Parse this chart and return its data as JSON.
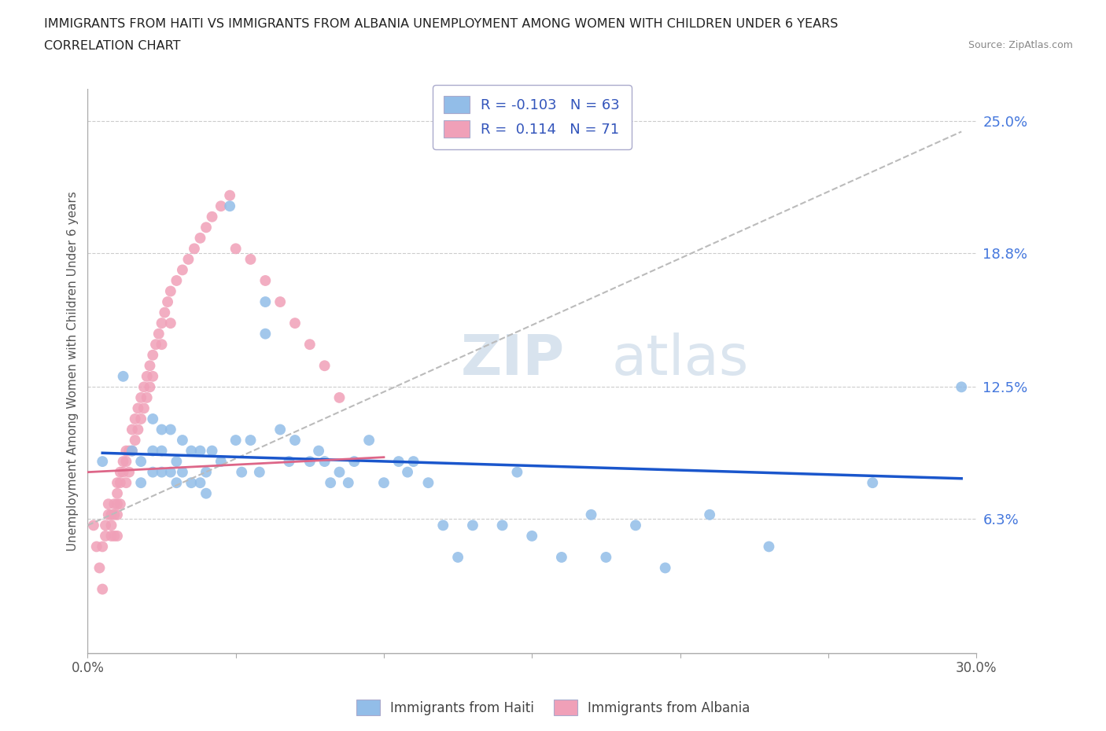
{
  "title_line1": "IMMIGRANTS FROM HAITI VS IMMIGRANTS FROM ALBANIA UNEMPLOYMENT AMONG WOMEN WITH CHILDREN UNDER 6 YEARS",
  "title_line2": "CORRELATION CHART",
  "source": "Source: ZipAtlas.com",
  "ylabel": "Unemployment Among Women with Children Under 6 years",
  "xlim": [
    0.0,
    0.3
  ],
  "ylim": [
    0.0,
    0.265
  ],
  "yticks": [
    0.063,
    0.125,
    0.188,
    0.25
  ],
  "ytick_labels": [
    "6.3%",
    "12.5%",
    "18.8%",
    "25.0%"
  ],
  "xticks": [
    0.0,
    0.3
  ],
  "xtick_labels": [
    "0.0%",
    "30.0%"
  ],
  "watermark_zip": "ZIP",
  "watermark_atlas": "atlas",
  "haiti_color": "#92bde8",
  "albania_color": "#f0a0b8",
  "haiti_line_color": "#1a56cc",
  "albania_line_color": "#dd6688",
  "dashed_line_color": "#cccccc",
  "haiti_R": -0.103,
  "haiti_N": 63,
  "albania_R": 0.114,
  "albania_N": 71,
  "legend_haiti_label": "Immigrants from Haiti",
  "legend_albania_label": "Immigrants from Albania",
  "haiti_scatter_x": [
    0.005,
    0.012,
    0.015,
    0.018,
    0.018,
    0.022,
    0.022,
    0.022,
    0.025,
    0.025,
    0.025,
    0.028,
    0.028,
    0.03,
    0.03,
    0.032,
    0.032,
    0.035,
    0.035,
    0.038,
    0.038,
    0.04,
    0.04,
    0.042,
    0.045,
    0.048,
    0.05,
    0.052,
    0.055,
    0.058,
    0.06,
    0.06,
    0.065,
    0.068,
    0.07,
    0.075,
    0.078,
    0.08,
    0.082,
    0.085,
    0.088,
    0.09,
    0.095,
    0.1,
    0.105,
    0.108,
    0.11,
    0.115,
    0.12,
    0.125,
    0.13,
    0.14,
    0.145,
    0.15,
    0.16,
    0.17,
    0.175,
    0.185,
    0.195,
    0.21,
    0.23,
    0.265,
    0.295
  ],
  "haiti_scatter_y": [
    0.09,
    0.13,
    0.095,
    0.09,
    0.08,
    0.11,
    0.095,
    0.085,
    0.105,
    0.095,
    0.085,
    0.105,
    0.085,
    0.09,
    0.08,
    0.1,
    0.085,
    0.095,
    0.08,
    0.095,
    0.08,
    0.085,
    0.075,
    0.095,
    0.09,
    0.21,
    0.1,
    0.085,
    0.1,
    0.085,
    0.165,
    0.15,
    0.105,
    0.09,
    0.1,
    0.09,
    0.095,
    0.09,
    0.08,
    0.085,
    0.08,
    0.09,
    0.1,
    0.08,
    0.09,
    0.085,
    0.09,
    0.08,
    0.06,
    0.045,
    0.06,
    0.06,
    0.085,
    0.055,
    0.045,
    0.065,
    0.045,
    0.06,
    0.04,
    0.065,
    0.05,
    0.08,
    0.125
  ],
  "albania_scatter_x": [
    0.002,
    0.003,
    0.004,
    0.005,
    0.005,
    0.006,
    0.006,
    0.007,
    0.007,
    0.008,
    0.008,
    0.008,
    0.009,
    0.009,
    0.009,
    0.01,
    0.01,
    0.01,
    0.01,
    0.01,
    0.011,
    0.011,
    0.011,
    0.012,
    0.012,
    0.013,
    0.013,
    0.013,
    0.014,
    0.014,
    0.015,
    0.015,
    0.016,
    0.016,
    0.017,
    0.017,
    0.018,
    0.018,
    0.019,
    0.019,
    0.02,
    0.02,
    0.021,
    0.021,
    0.022,
    0.022,
    0.023,
    0.024,
    0.025,
    0.025,
    0.026,
    0.027,
    0.028,
    0.028,
    0.03,
    0.032,
    0.034,
    0.036,
    0.038,
    0.04,
    0.042,
    0.045,
    0.048,
    0.05,
    0.055,
    0.06,
    0.065,
    0.07,
    0.075,
    0.08,
    0.085
  ],
  "albania_scatter_y": [
    0.06,
    0.05,
    0.04,
    0.03,
    0.05,
    0.055,
    0.06,
    0.065,
    0.07,
    0.055,
    0.065,
    0.06,
    0.07,
    0.065,
    0.055,
    0.08,
    0.075,
    0.07,
    0.065,
    0.055,
    0.085,
    0.08,
    0.07,
    0.09,
    0.085,
    0.095,
    0.09,
    0.08,
    0.095,
    0.085,
    0.105,
    0.095,
    0.11,
    0.1,
    0.115,
    0.105,
    0.12,
    0.11,
    0.125,
    0.115,
    0.13,
    0.12,
    0.135,
    0.125,
    0.14,
    0.13,
    0.145,
    0.15,
    0.155,
    0.145,
    0.16,
    0.165,
    0.17,
    0.155,
    0.175,
    0.18,
    0.185,
    0.19,
    0.195,
    0.2,
    0.205,
    0.21,
    0.215,
    0.19,
    0.185,
    0.175,
    0.165,
    0.155,
    0.145,
    0.135,
    0.12
  ],
  "haiti_trendline_x": [
    0.005,
    0.295
  ],
  "haiti_trendline_y": [
    0.094,
    0.082
  ],
  "albania_trendline_x": [
    0.0,
    0.295
  ],
  "albania_trendline_y": [
    0.06,
    0.245
  ]
}
